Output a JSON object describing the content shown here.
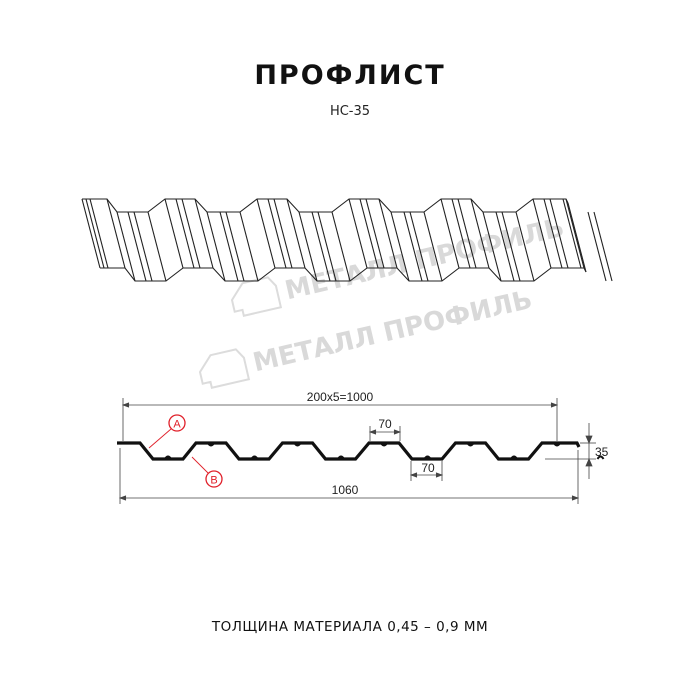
{
  "header": {
    "title": "ПРОФЛИСТ",
    "subtitle": "НС-35"
  },
  "watermark": {
    "text": "МЕТАЛЛ ПРОФИЛЬ"
  },
  "cross_section": {
    "dim_overall_pitch": "200x5=1000",
    "dim_top_width": "70",
    "dim_bottom_width": "70",
    "dim_height": "35",
    "dim_total_width": "1060",
    "marker_a": "A",
    "marker_b": "B",
    "marker_color": "#e0202a"
  },
  "footer": {
    "thickness": "ТОЛЩИНА МАТЕРИАЛА 0,45 – 0,9 ММ"
  }
}
